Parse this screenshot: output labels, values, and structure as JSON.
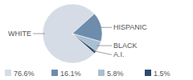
{
  "chart_data": {
    "type": "pie",
    "categories": [
      "WHITE",
      "HISPANIC",
      "BLACK",
      "A.I."
    ],
    "values": [
      76.6,
      16.1,
      5.8,
      1.5
    ],
    "value_labels": [
      "76.6%",
      "16.1%",
      "5.8%",
      "1.5%"
    ],
    "colors": [
      "#d6dce6",
      "#6e8cab",
      "#a9bfd2",
      "#2d4b6c"
    ],
    "legend": "bottom"
  }
}
